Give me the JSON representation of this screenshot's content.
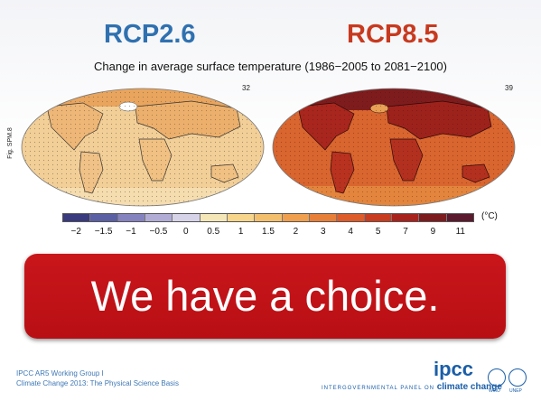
{
  "scenarios": {
    "left": "RCP2.6",
    "right": "RCP8.5"
  },
  "subtitle": "Change in average surface temperature (1986−2005 to 2081−2100)",
  "fig_label": "Fig. SPM.8",
  "maps": {
    "left_count": "32",
    "right_count": "39",
    "left_base_color": "#f2c98a",
    "right_base_color": "#c8502a"
  },
  "colorbar": {
    "unit": "(°C)",
    "ticks": [
      "−2",
      "−1.5",
      "−1",
      "−0.5",
      "0",
      "0.5",
      "1",
      "1.5",
      "2",
      "3",
      "4",
      "5",
      "7",
      "9",
      "11"
    ],
    "colors": [
      "#3a3a7e",
      "#5b5fa3",
      "#8583bf",
      "#b0acd5",
      "#d6d3e8",
      "#f5e6b8",
      "#f7d68c",
      "#f3bf6d",
      "#ef9f4d",
      "#e87f38",
      "#de5c2a",
      "#c93c20",
      "#a8231c",
      "#7d1c1f",
      "#5b1a2d"
    ]
  },
  "banner": {
    "text": "We have a choice.",
    "color": "#c4141a"
  },
  "footer": {
    "line1": "IPCC AR5 Working Group I",
    "line2": "Climate Change 2013: The Physical Science Basis",
    "logo": "ipcc",
    "tagline_small": "INTERGOVERNMENTAL PANEL ON",
    "tagline_big": "climate change",
    "wmo": "WMO",
    "unep": "UNEP"
  }
}
